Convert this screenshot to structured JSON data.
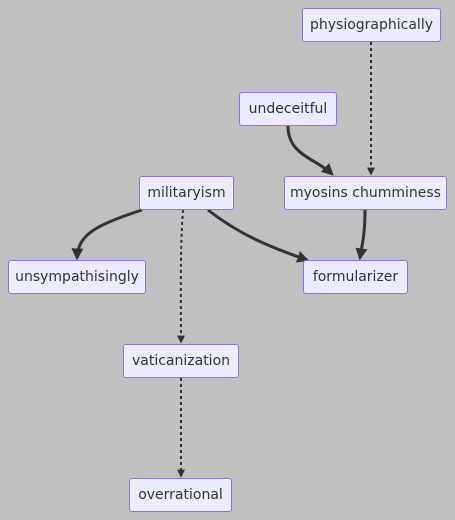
{
  "nodes": {
    "physiographically": "physiographically",
    "undeceitful": "undeceitful",
    "militaryism": "militaryism",
    "myosins_chumminess": "myosins chumminess",
    "unsympathisingly": "unsympathisingly",
    "formularizer": "formularizer",
    "vaticanization": "vaticanization",
    "overrational": "overrational"
  },
  "edges": [
    {
      "from": "physiographically",
      "to": "myosins_chumminess",
      "style": "dotted"
    },
    {
      "from": "undeceitful",
      "to": "myosins_chumminess",
      "style": "solid"
    },
    {
      "from": "myosins_chumminess",
      "to": "formularizer",
      "style": "solid"
    },
    {
      "from": "militaryism",
      "to": "unsympathisingly",
      "style": "solid"
    },
    {
      "from": "militaryism",
      "to": "formularizer",
      "style": "solid"
    },
    {
      "from": "militaryism",
      "to": "vaticanization",
      "style": "dotted"
    },
    {
      "from": "vaticanization",
      "to": "overrational",
      "style": "dotted"
    }
  ]
}
